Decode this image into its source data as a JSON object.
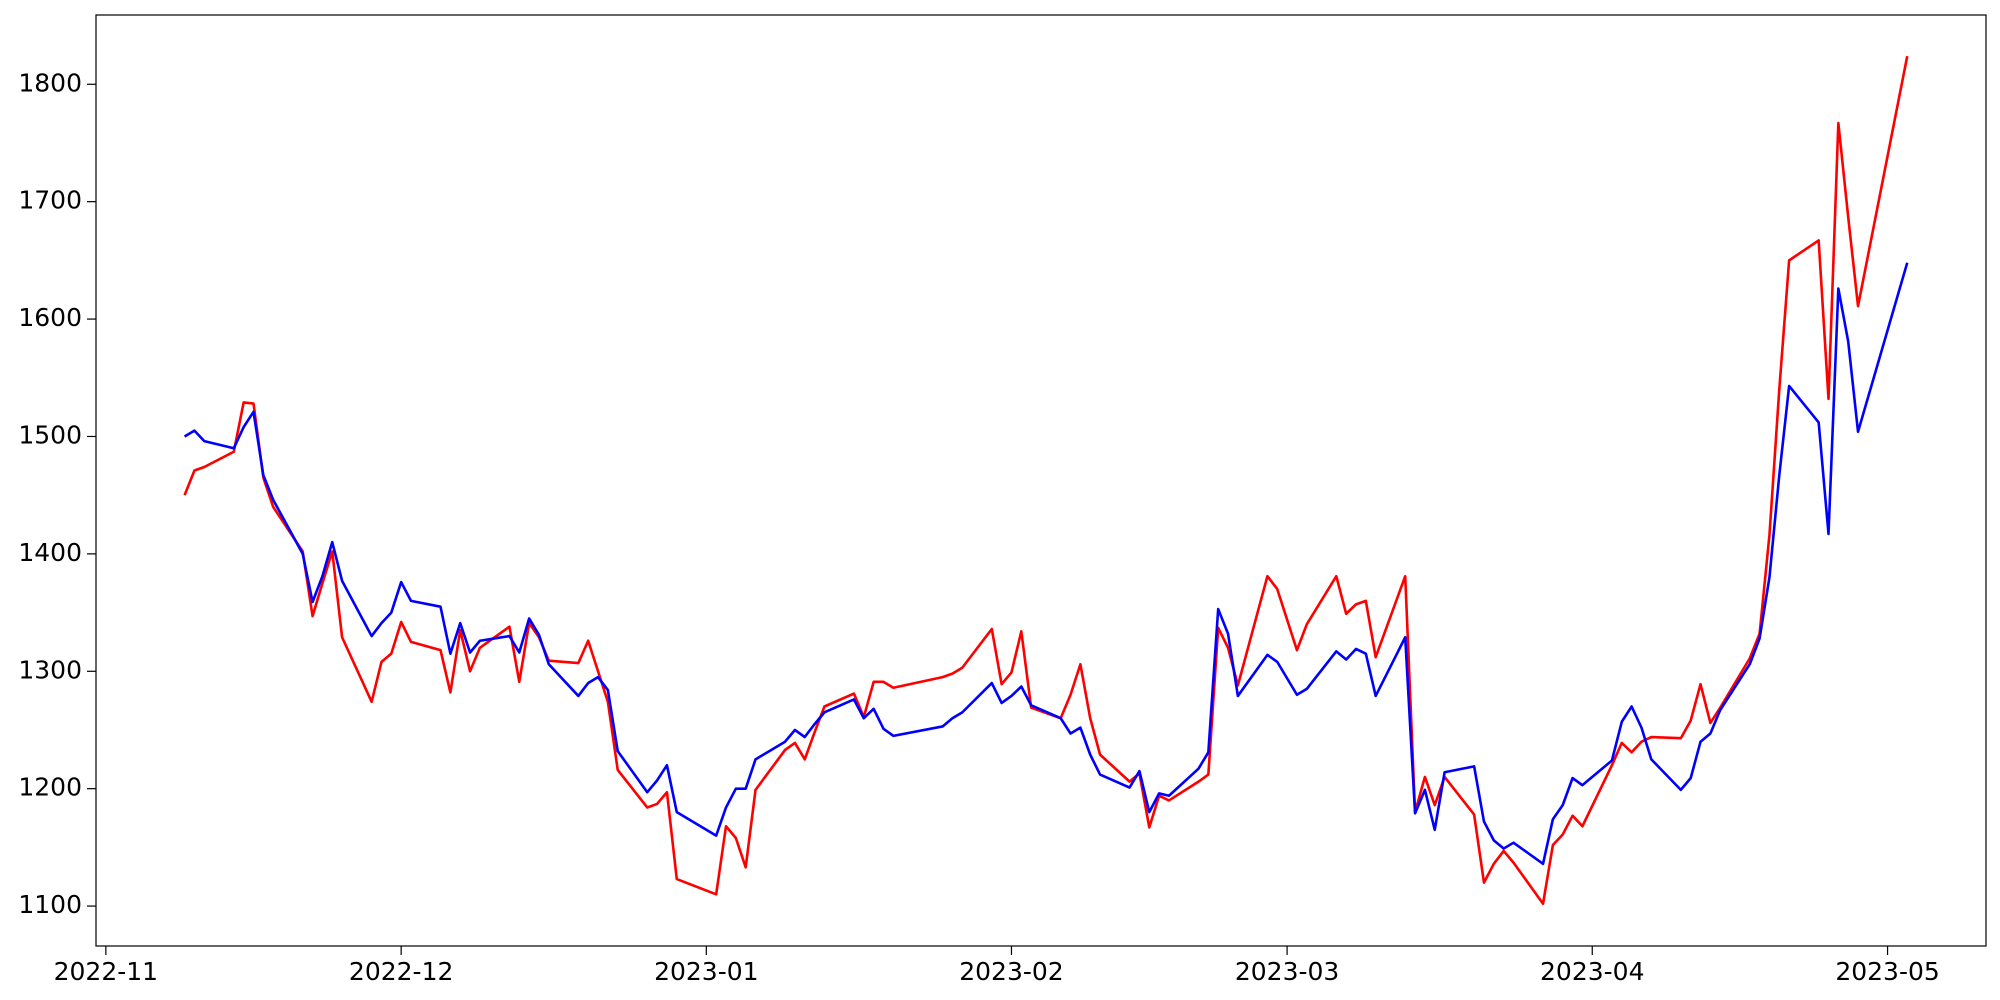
{
  "chart_data": {
    "type": "line",
    "x": [
      "2022-11-09",
      "2022-11-10",
      "2022-11-11",
      "2022-11-14",
      "2022-11-15",
      "2022-11-16",
      "2022-11-17",
      "2022-11-18",
      "2022-11-21",
      "2022-11-22",
      "2022-11-23",
      "2022-11-24",
      "2022-11-25",
      "2022-11-28",
      "2022-11-29",
      "2022-11-30",
      "2022-12-01",
      "2022-12-02",
      "2022-12-05",
      "2022-12-06",
      "2022-12-07",
      "2022-12-08",
      "2022-12-09",
      "2022-12-12",
      "2022-12-13",
      "2022-12-14",
      "2022-12-15",
      "2022-12-16",
      "2022-12-19",
      "2022-12-20",
      "2022-12-21",
      "2022-12-22",
      "2022-12-23",
      "2022-12-26",
      "2022-12-27",
      "2022-12-28",
      "2022-12-29",
      "2023-01-02",
      "2023-01-03",
      "2023-01-04",
      "2023-01-05",
      "2023-01-06",
      "2023-01-09",
      "2023-01-10",
      "2023-01-11",
      "2023-01-12",
      "2023-01-13",
      "2023-01-16",
      "2023-01-17",
      "2023-01-18",
      "2023-01-19",
      "2023-01-20",
      "2023-01-25",
      "2023-01-26",
      "2023-01-27",
      "2023-01-30",
      "2023-01-31",
      "2023-02-01",
      "2023-02-02",
      "2023-02-03",
      "2023-02-06",
      "2023-02-07",
      "2023-02-08",
      "2023-02-09",
      "2023-02-10",
      "2023-02-13",
      "2023-02-14",
      "2023-02-15",
      "2023-02-16",
      "2023-02-17",
      "2023-02-20",
      "2023-02-21",
      "2023-02-22",
      "2023-02-23",
      "2023-02-24",
      "2023-02-27",
      "2023-02-28",
      "2023-03-02",
      "2023-03-03",
      "2023-03-06",
      "2023-03-07",
      "2023-03-08",
      "2023-03-09",
      "2023-03-10",
      "2023-03-13",
      "2023-03-14",
      "2023-03-15",
      "2023-03-16",
      "2023-03-17",
      "2023-03-20",
      "2023-03-21",
      "2023-03-22",
      "2023-03-23",
      "2023-03-24",
      "2023-03-27",
      "2023-03-28",
      "2023-03-29",
      "2023-03-30",
      "2023-03-31",
      "2023-04-03",
      "2023-04-04",
      "2023-04-05",
      "2023-04-06",
      "2023-04-07",
      "2023-04-10",
      "2023-04-11",
      "2023-04-12",
      "2023-04-13",
      "2023-04-14",
      "2023-04-17",
      "2023-04-18",
      "2023-04-19",
      "2023-04-20",
      "2023-04-21",
      "2023-04-24",
      "2023-04-25",
      "2023-04-26",
      "2023-04-27",
      "2023-04-28",
      "2023-05-03"
    ],
    "series": [
      {
        "color": "#ff0000",
        "values": [
          1450,
          1471,
          1474,
          1487,
          1529,
          1528,
          1465,
          1440,
          1402,
          1347,
          1375,
          1402,
          1329,
          1274,
          1308,
          1315,
          1342,
          1325,
          1318,
          1282,
          1335,
          1300,
          1320,
          1338,
          1291,
          1341,
          1329,
          1309,
          1307,
          1326,
          1300,
          1274,
          1216,
          1184,
          1187,
          1197,
          1123,
          1110,
          1168,
          1158,
          1133,
          1199,
          1233,
          1239,
          1225,
          1248,
          1270,
          1281,
          1261,
          1291,
          1291,
          1286,
          1295,
          1298,
          1303,
          1336,
          1289,
          1299,
          1334,
          1269,
          1260,
          1280,
          1306,
          1260,
          1229,
          1206,
          1213,
          1167,
          1194,
          1190,
          1206,
          1212,
          1337,
          1320,
          1288,
          1381,
          1370,
          1318,
          1340,
          1381,
          1349,
          1357,
          1360,
          1312,
          1381,
          1180,
          1210,
          1186,
          1210,
          1178,
          1120,
          1136,
          1147,
          1137,
          1102,
          1152,
          1161,
          1177,
          1168,
          1220,
          1239,
          1231,
          1240,
          1244,
          1243,
          1258,
          1289,
          1256,
          1269,
          1311,
          1332,
          1416,
          1540,
          1650,
          1667,
          1532,
          1767,
          1687,
          1611,
          1824
        ]
      },
      {
        "color": "#0000ff",
        "values": [
          1500,
          1505,
          1496,
          1490,
          1508,
          1521,
          1467,
          1446,
          1400,
          1359,
          1381,
          1410,
          1377,
          1330,
          1341,
          1350,
          1376,
          1360,
          1355,
          1315,
          1341,
          1316,
          1326,
          1330,
          1316,
          1345,
          1331,
          1306,
          1279,
          1290,
          1295,
          1284,
          1232,
          1197,
          1207,
          1220,
          1180,
          1160,
          1184,
          1200,
          1200,
          1225,
          1240,
          1250,
          1244,
          1255,
          1265,
          1276,
          1260,
          1268,
          1251,
          1245,
          1253,
          1260,
          1265,
          1290,
          1273,
          1279,
          1287,
          1271,
          1260,
          1247,
          1252,
          1229,
          1212,
          1201,
          1215,
          1180,
          1196,
          1194,
          1217,
          1231,
          1353,
          1332,
          1279,
          1314,
          1308,
          1280,
          1285,
          1317,
          1310,
          1319,
          1315,
          1279,
          1329,
          1179,
          1199,
          1165,
          1214,
          1219,
          1172,
          1156,
          1149,
          1154,
          1136,
          1174,
          1186,
          1209,
          1203,
          1224,
          1257,
          1270,
          1252,
          1225,
          1199,
          1209,
          1240,
          1247,
          1267,
          1306,
          1328,
          1380,
          1467,
          1543,
          1512,
          1417,
          1626,
          1581,
          1504,
          1648
        ]
      }
    ],
    "xlim": [
      "2022-10-31",
      "2023-05-11"
    ],
    "xticks": [
      {
        "value": "2022-11-01",
        "label": "2022-11"
      },
      {
        "value": "2022-12-01",
        "label": "2022-12"
      },
      {
        "value": "2023-01-01",
        "label": "2023-01"
      },
      {
        "value": "2023-02-01",
        "label": "2023-02"
      },
      {
        "value": "2023-03-01",
        "label": "2023-03"
      },
      {
        "value": "2023-04-01",
        "label": "2023-04"
      },
      {
        "value": "2023-05-01",
        "label": "2023-05"
      }
    ],
    "ylim": [
      1066,
      1859
    ],
    "yticks": [
      1100,
      1200,
      1300,
      1400,
      1500,
      1600,
      1700,
      1800
    ],
    "grid": false
  }
}
